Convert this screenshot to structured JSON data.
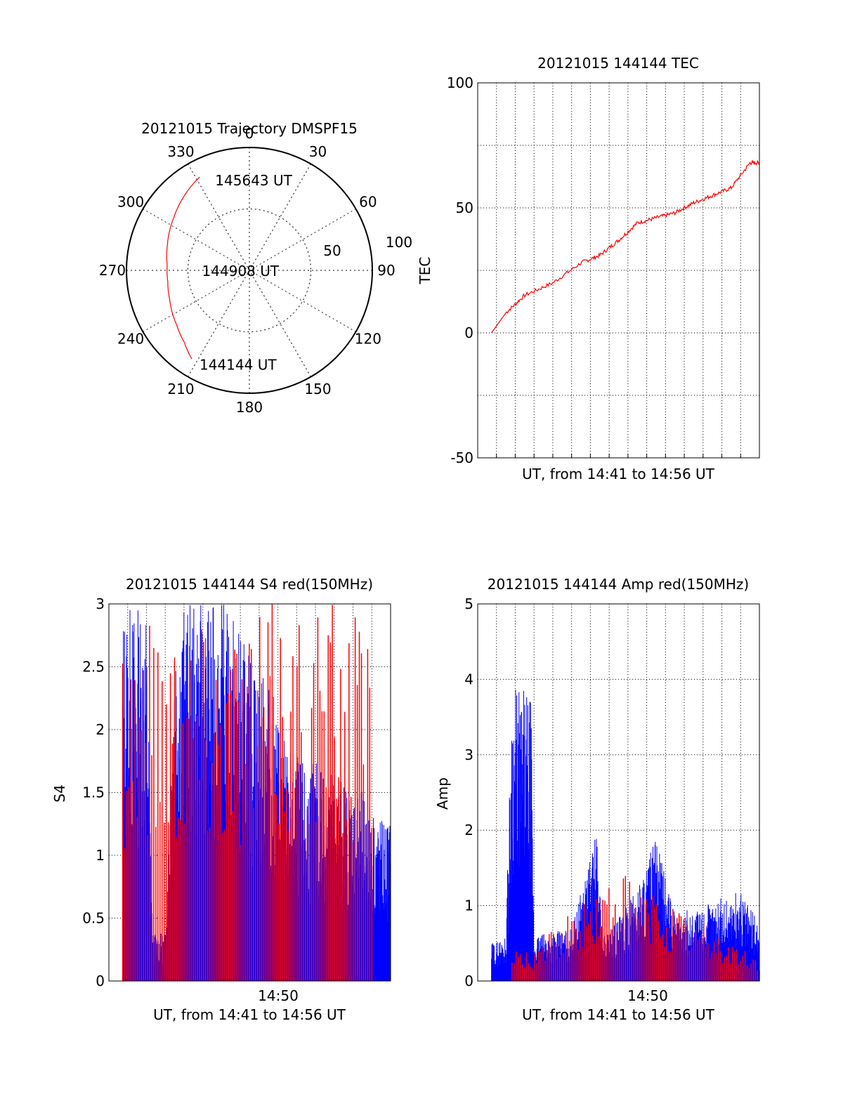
{
  "chart_data": [
    {
      "type": "polar",
      "title": "20121015 Trajectory DMSPF15",
      "azimuth_labels": [
        "0",
        "30",
        "60",
        "90",
        "120",
        "150",
        "180",
        "210",
        "240",
        "270",
        "300",
        "330"
      ],
      "radial_labels": [
        "50",
        "100"
      ],
      "rlim": [
        0,
        100
      ],
      "series": [
        {
          "color": "#ff0000",
          "points": [
            {
              "az": 213,
              "r": 86
            },
            {
              "az": 222,
              "r": 79
            },
            {
              "az": 233,
              "r": 74
            },
            {
              "az": 250,
              "r": 69
            },
            {
              "az": 262,
              "r": 67
            },
            {
              "az": 274,
              "r": 67
            },
            {
              "az": 288,
              "r": 70
            },
            {
              "az": 305,
              "r": 75
            },
            {
              "az": 320,
              "r": 81
            },
            {
              "az": 332,
              "r": 86
            }
          ]
        }
      ],
      "annotations": [
        {
          "text": "145643 UT",
          "az": 337,
          "r": 80
        },
        {
          "text": "144908 UT",
          "az": 270,
          "r": 42
        },
        {
          "text": "144144 UT",
          "az": 210,
          "r": 88
        }
      ]
    },
    {
      "type": "line",
      "title": "20121015 144144 TEC",
      "xlabel": "UT, from 14:41 to 14:56 UT",
      "ylabel": "TEC",
      "xlim": [
        "14:41",
        "14:56"
      ],
      "ylim": [
        -50,
        100
      ],
      "yticks": [
        "-50",
        "0",
        "50",
        "100"
      ],
      "grid": true,
      "series": [
        {
          "color": "#ff0000",
          "x": [
            "14:41:44",
            "14:42:30",
            "14:43:30",
            "14:45:00",
            "14:46:30",
            "14:47:30",
            "14:48:30",
            "14:49:30",
            "14:50:30",
            "14:51:30",
            "14:52:30",
            "14:53:30",
            "14:54:30",
            "14:55:30",
            "14:56:00"
          ],
          "values": [
            0,
            8,
            15,
            20,
            28,
            31,
            37,
            44,
            46,
            48,
            52,
            55,
            58,
            68,
            68
          ]
        }
      ]
    },
    {
      "type": "line",
      "title": "20121015 144144 S4 red(150MHz)",
      "xlabel": "UT, from 14:41 to 14:56 UT",
      "ylabel": "S4",
      "xtick_label": "14:50",
      "xlim": [
        "14:41",
        "14:56"
      ],
      "ylim": [
        0,
        3
      ],
      "yticks": [
        "0",
        "0.5",
        "1",
        "1.5",
        "2",
        "2.5",
        "3"
      ],
      "grid": true,
      "series": [
        {
          "color": "#0000ff",
          "note_values_envelope": [
            [
              "14:41:44",
              3.0
            ],
            [
              "14:43:00",
              3.0
            ],
            [
              "14:43:20",
              0.38
            ],
            [
              "14:44:00",
              0.38
            ],
            [
              "14:44:30",
              3.0
            ],
            [
              "14:47:30",
              3.0
            ],
            [
              "14:48:30",
              2.6
            ],
            [
              "14:49:30",
              2.4
            ],
            [
              "14:50:30",
              1.9
            ],
            [
              "14:51:30",
              1.7
            ],
            [
              "14:52:30",
              1.8
            ],
            [
              "14:53:30",
              1.6
            ],
            [
              "14:54:30",
              1.5
            ],
            [
              "14:55:30",
              1.3
            ],
            [
              "14:56:00",
              1.3
            ]
          ]
        },
        {
          "color": "#ff0000",
          "note_values_envelope": [
            [
              "14:41:44",
              3.0
            ],
            [
              "14:49:00",
              3.0
            ],
            [
              "14:50:00",
              3.0
            ],
            [
              "14:52:30",
              3.0
            ],
            [
              "14:55:00",
              3.0
            ]
          ]
        }
      ]
    },
    {
      "type": "line",
      "title": "20121015 144144 Amp red(150MHz)",
      "xlabel": "UT, from 14:41 to 14:56 UT",
      "ylabel": "Amp",
      "xtick_label": "14:50",
      "xlim": [
        "14:41",
        "14:56"
      ],
      "ylim": [
        0,
        5
      ],
      "yticks": [
        "0",
        "1",
        "2",
        "3",
        "4",
        "5"
      ],
      "grid": true,
      "series": [
        {
          "color": "#0000ff",
          "note_values_envelope": [
            [
              "14:41:44",
              0.5
            ],
            [
              "14:42:30",
              0.6
            ],
            [
              "14:42:50",
              4.0
            ],
            [
              "14:43:50",
              3.8
            ],
            [
              "14:44:00",
              0.6
            ],
            [
              "14:46:00",
              0.7
            ],
            [
              "14:47:20",
              2.0
            ],
            [
              "14:47:40",
              0.6
            ],
            [
              "14:49:00",
              1.0
            ],
            [
              "14:50:30",
              1.9
            ],
            [
              "14:51:30",
              0.9
            ],
            [
              "14:53:00",
              1.0
            ],
            [
              "14:55:00",
              1.2
            ],
            [
              "14:56:00",
              0.8
            ]
          ]
        },
        {
          "color": "#ff0000",
          "note_values_envelope": [
            [
              "14:42:50",
              0.4
            ],
            [
              "14:43:50",
              0.4
            ],
            [
              "14:48:30",
              1.5
            ],
            [
              "14:56:00",
              0.3
            ]
          ]
        }
      ]
    }
  ]
}
